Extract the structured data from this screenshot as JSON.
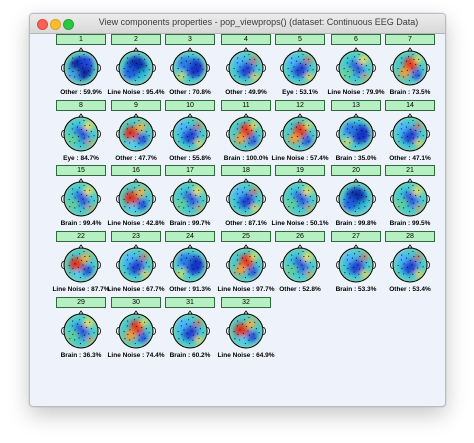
{
  "window": {
    "title": "View components properties - pop_viewprops() (dataset: Continuous EEG Data)"
  },
  "components": [
    {
      "num": "1",
      "label": "Other : 59.9%",
      "pattern": "deepblue"
    },
    {
      "num": "2",
      "label": "Line Noise : 95.4%",
      "pattern": "darkblue"
    },
    {
      "num": "3",
      "label": "Other : 70.8%",
      "pattern": "blueright"
    },
    {
      "num": "4",
      "label": "Other : 49.9%",
      "pattern": "bluecenter"
    },
    {
      "num": "5",
      "label": "Eye : 53.1%",
      "pattern": "bluecenter"
    },
    {
      "num": "6",
      "label": "Line Noise : 79.9%",
      "pattern": "greenblue"
    },
    {
      "num": "7",
      "label": "Brain : 73.5%",
      "pattern": "redtop"
    },
    {
      "num": "8",
      "label": "Eye : 84.7%",
      "pattern": "greenblue"
    },
    {
      "num": "9",
      "label": "Other : 47.7%",
      "pattern": "redleft"
    },
    {
      "num": "10",
      "label": "Other : 55.8%",
      "pattern": "bluecenter"
    },
    {
      "num": "11",
      "label": "Brain : 100.0%",
      "pattern": "redtop"
    },
    {
      "num": "12",
      "label": "Line Noise : 57.4%",
      "pattern": "redtop"
    },
    {
      "num": "13",
      "label": "Brain : 35.0%",
      "pattern": "blueright"
    },
    {
      "num": "14",
      "label": "Other : 47.1%",
      "pattern": "bluecenter"
    },
    {
      "num": "15",
      "label": "Brain : 99.4%",
      "pattern": "greenblue"
    },
    {
      "num": "16",
      "label": "Line Noise : 42.8%",
      "pattern": "redleft"
    },
    {
      "num": "17",
      "label": "Brain : 99.7%",
      "pattern": "greenblue"
    },
    {
      "num": "18",
      "label": "Other : 87.1%",
      "pattern": "bluecenter"
    },
    {
      "num": "19",
      "label": "Line Noise : 50.1%",
      "pattern": "greenblue"
    },
    {
      "num": "20",
      "label": "Brain : 99.8%",
      "pattern": "darkblue"
    },
    {
      "num": "21",
      "label": "Brain : 99.5%",
      "pattern": "greenblue"
    },
    {
      "num": "22",
      "label": "Line Noise : 87.7%",
      "pattern": "redleft"
    },
    {
      "num": "23",
      "label": "Line Noise : 67.7%",
      "pattern": "bluecenter"
    },
    {
      "num": "24",
      "label": "Other : 91.3%",
      "pattern": "blueright"
    },
    {
      "num": "25",
      "label": "Line Noise : 97.7%",
      "pattern": "redtop"
    },
    {
      "num": "26",
      "label": "Other : 52.8%",
      "pattern": "greenblue"
    },
    {
      "num": "27",
      "label": "Brain : 53.3%",
      "pattern": "bluecenter"
    },
    {
      "num": "28",
      "label": "Other : 53.4%",
      "pattern": "bluecenter"
    },
    {
      "num": "29",
      "label": "Brain : 36.3%",
      "pattern": "greenblue"
    },
    {
      "num": "30",
      "label": "Line Noise : 74.4%",
      "pattern": "redtop"
    },
    {
      "num": "31",
      "label": "Brain : 60.2%",
      "pattern": "bluecenter"
    },
    {
      "num": "32",
      "label": "Line Noise : 64.9%",
      "pattern": "redleft"
    }
  ],
  "colors": {
    "window_bg": "#eef2fb",
    "button_bg": "#b6efc2",
    "button_border": "#2f6a3c"
  },
  "icons": {
    "close": "close-icon",
    "minimize": "minimize-icon",
    "maximize": "maximize-icon",
    "head": "scalp-topography-icon"
  }
}
